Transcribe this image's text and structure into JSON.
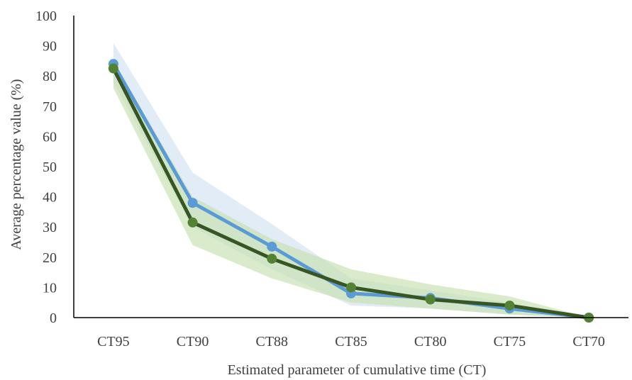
{
  "chart_data": {
    "type": "line",
    "title": "",
    "xlabel": "Estimated parameter of cumulative time (CT)",
    "ylabel": "Average percentage value (%)",
    "categories": [
      "CT95",
      "CT90",
      "CT88",
      "CT85",
      "CT80",
      "CT75",
      "CT70"
    ],
    "ylim": [
      0,
      100
    ],
    "yticks": [
      0,
      10,
      20,
      30,
      40,
      50,
      60,
      70,
      80,
      90,
      100
    ],
    "grid": false,
    "series": [
      {
        "values": [
          84,
          38,
          23.5,
          8,
          6.5,
          3,
          0
        ],
        "band_upper": [
          91,
          48,
          31,
          13,
          9,
          5,
          0
        ],
        "band_lower": [
          78,
          30,
          16,
          4,
          3,
          1,
          0
        ],
        "color": "#5b9bd5",
        "band_color": "#d6e4f4"
      },
      {
        "values": [
          82.5,
          31.5,
          19.5,
          10,
          6,
          4,
          0
        ],
        "band_upper": [
          85,
          40,
          26,
          16,
          11,
          7,
          0
        ],
        "band_lower": [
          76,
          24,
          13,
          5,
          3,
          1,
          0
        ],
        "color": "#375623",
        "marker_color": "#548235",
        "band_color": "#c9e2b3"
      }
    ]
  }
}
